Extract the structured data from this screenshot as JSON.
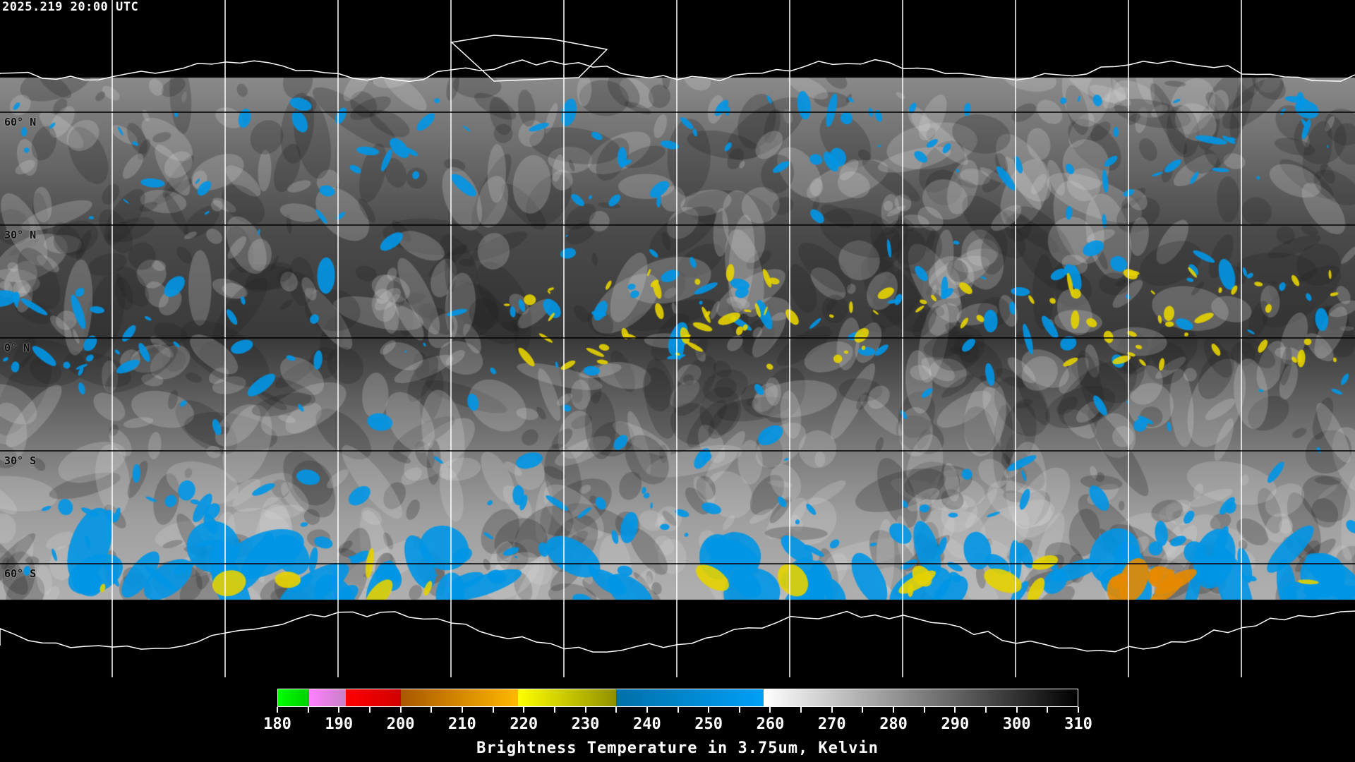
{
  "timestamp": "2025.219 20:00 UTC",
  "map": {
    "projection": "equirectangular",
    "latitude_labels": [
      "60° N",
      "30° N",
      "0° N",
      "30° S",
      "60° S"
    ],
    "colors": {
      "grid": "#000000",
      "coast_polar": "#ffffff",
      "coast": "#000000",
      "cloud_cold": "#0096e6",
      "cloud_colder": "#e6d200",
      "cloud_coldest": "#e68a00"
    }
  },
  "colorbar": {
    "title": "Brightness Temperature in 3.75um, Kelvin",
    "min": 180,
    "max": 310,
    "tick_labels": [
      "180",
      "190",
      "200",
      "210",
      "220",
      "230",
      "240",
      "250",
      "260",
      "270",
      "280",
      "290",
      "300",
      "310"
    ],
    "segments": [
      {
        "from": 180,
        "to": 185,
        "colors": [
          "#00ff00",
          "#00d000"
        ]
      },
      {
        "from": 185,
        "to": 191,
        "colors": [
          "#ff80ff",
          "#c880c8"
        ]
      },
      {
        "from": 191,
        "to": 200,
        "colors": [
          "#ff0000",
          "#d00000"
        ]
      },
      {
        "from": 200,
        "to": 219,
        "colors": [
          "#a85800",
          "#ffb800"
        ]
      },
      {
        "from": 219,
        "to": 235,
        "colors": [
          "#ffff00",
          "#909000"
        ]
      },
      {
        "from": 235,
        "to": 259,
        "colors": [
          "#0070a8",
          "#00a0f8"
        ]
      },
      {
        "from": 259,
        "to": 310,
        "colors": [
          "#ffffff",
          "#000000"
        ]
      }
    ]
  }
}
